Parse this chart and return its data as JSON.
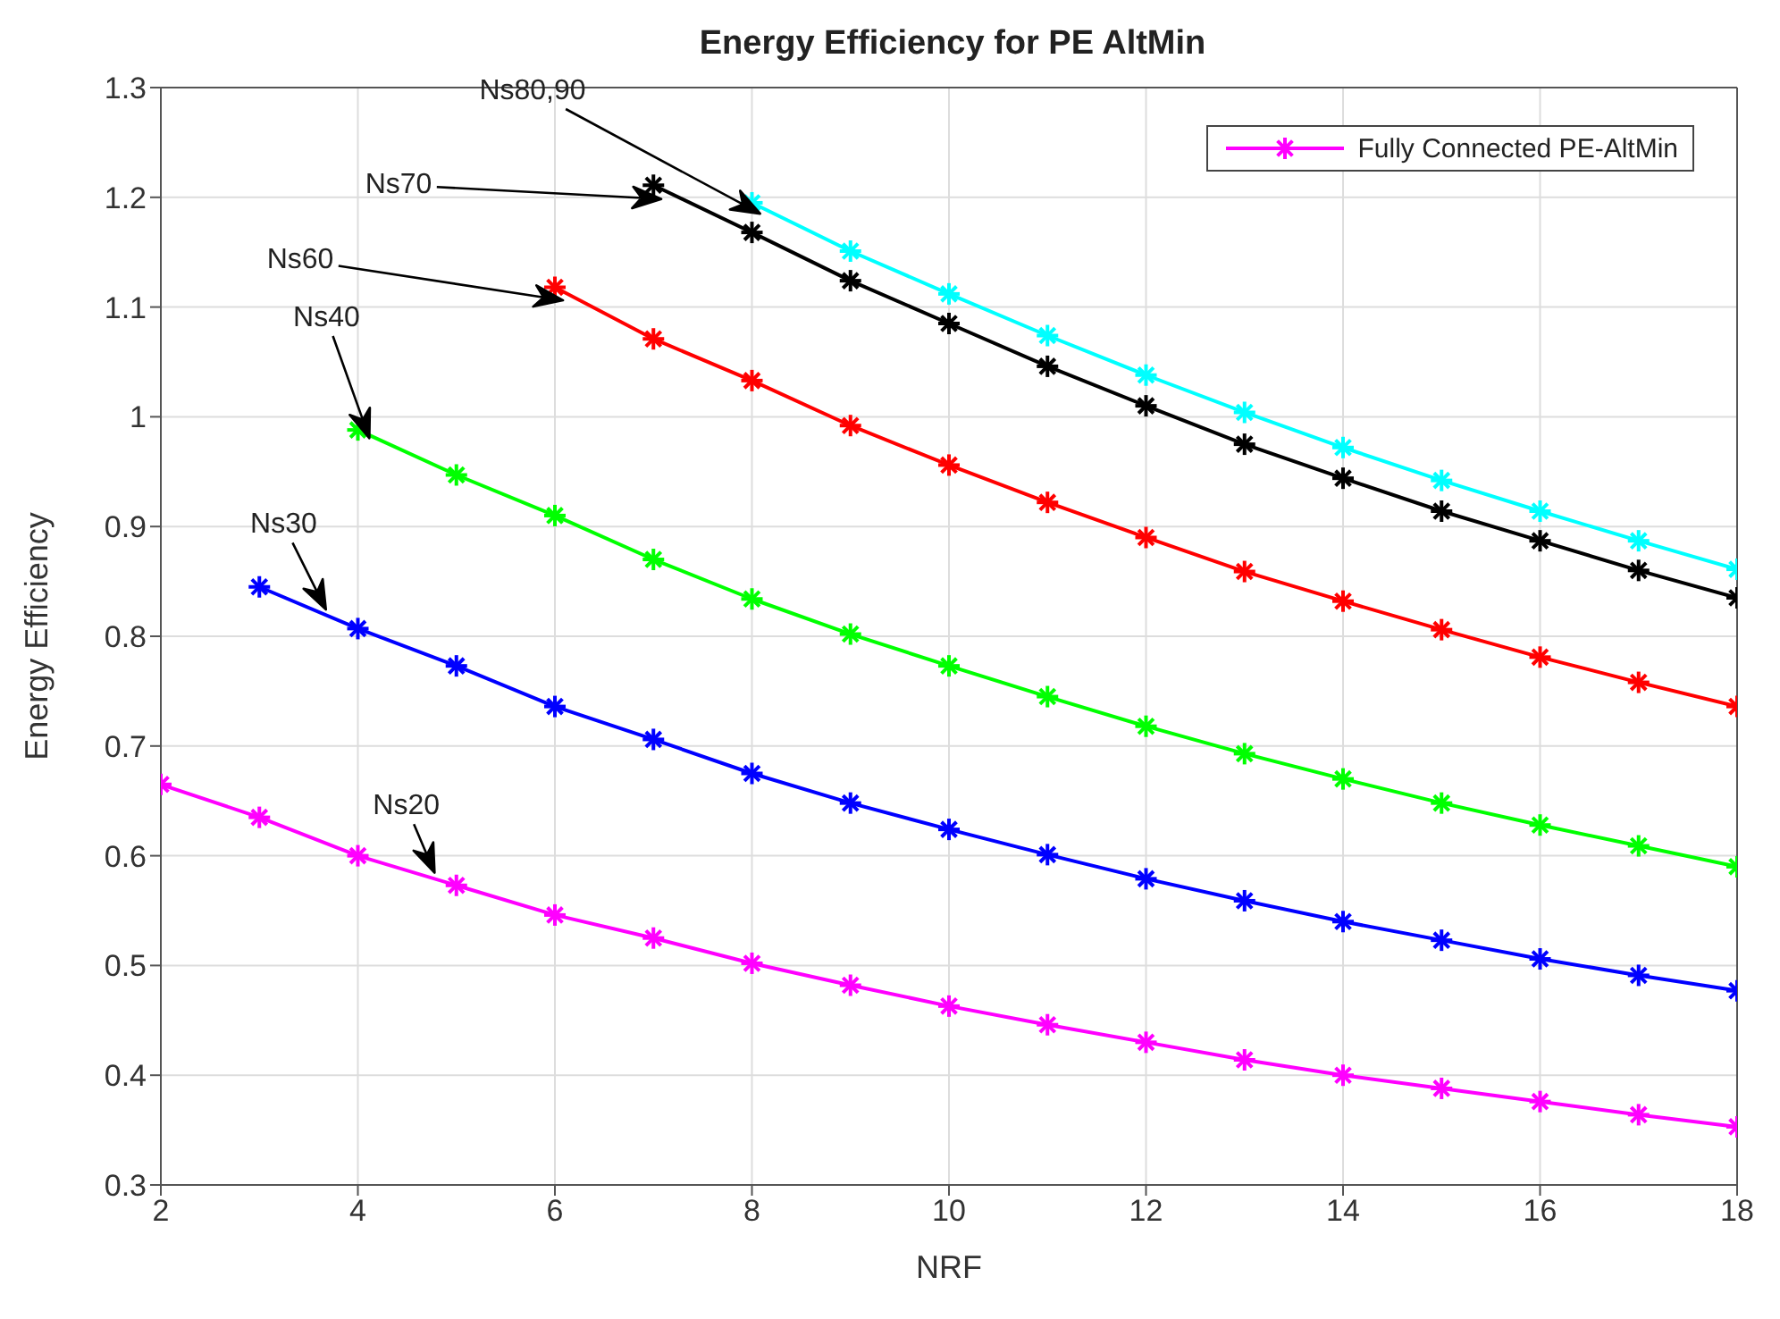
{
  "chart_data": {
    "type": "line",
    "title": "Energy Efficiency for PE AltMin",
    "xlabel": "NRF",
    "ylabel": "Energy Efficiency",
    "xlim": [
      2,
      18
    ],
    "xticks": [
      2,
      4,
      6,
      8,
      10,
      12,
      14,
      16,
      18
    ],
    "ylim": [
      0.3,
      1.3
    ],
    "yticks": [
      0.3,
      0.4,
      0.5,
      0.6,
      0.7,
      0.8,
      0.9,
      1,
      1.1,
      1.2,
      1.3
    ],
    "grid": true,
    "legend": "top right",
    "marker": "cross",
    "line_style": "solid",
    "series": [
      {
        "name": "Fully Connected PE-AltMin",
        "color": "#ff00ff",
        "x": [
          2,
          3,
          4,
          5,
          6,
          7,
          8,
          9,
          10,
          11,
          12,
          13,
          14,
          15,
          16,
          17,
          18
        ],
        "values": [
          0.665,
          0.635,
          0.6,
          0.573,
          0.546,
          0.525,
          0.502,
          0.482,
          0.463,
          0.446,
          0.43,
          0.414,
          0.4,
          0.388,
          0.376,
          0.364,
          0.353
        ]
      },
      {
        "color": "#0000ff",
        "x": [
          3,
          4,
          5,
          6,
          7,
          8,
          9,
          10,
          11,
          12,
          13,
          14,
          15,
          16,
          17,
          18
        ],
        "values": [
          0.845,
          0.807,
          0.773,
          0.736,
          0.706,
          0.675,
          0.648,
          0.624,
          0.601,
          0.579,
          0.559,
          0.54,
          0.523,
          0.506,
          0.491,
          0.477
        ]
      },
      {
        "color": "#00ff00",
        "x": [
          4,
          5,
          6,
          7,
          8,
          9,
          10,
          11,
          12,
          13,
          14,
          15,
          16,
          17,
          18
        ],
        "values": [
          0.988,
          0.947,
          0.91,
          0.87,
          0.834,
          0.802,
          0.773,
          0.745,
          0.718,
          0.693,
          0.67,
          0.648,
          0.628,
          0.609,
          0.59
        ]
      },
      {
        "color": "#ff0000",
        "x": [
          6,
          7,
          8,
          9,
          10,
          11,
          12,
          13,
          14,
          15,
          16,
          17,
          18
        ],
        "values": [
          1.118,
          1.071,
          1.033,
          0.992,
          0.956,
          0.922,
          0.89,
          0.859,
          0.832,
          0.806,
          0.781,
          0.758,
          0.736
        ]
      },
      {
        "color": "#000000",
        "x": [
          7,
          8,
          9,
          10,
          11,
          12,
          13,
          14,
          15,
          16,
          17,
          18
        ],
        "values": [
          1.211,
          1.168,
          1.124,
          1.085,
          1.046,
          1.01,
          0.975,
          0.944,
          0.914,
          0.887,
          0.86,
          0.835
        ]
      },
      {
        "color": "#00ffff",
        "x": [
          8,
          9,
          10,
          11,
          12,
          13,
          14,
          15,
          16,
          17,
          18
        ],
        "values": [
          1.195,
          1.151,
          1.112,
          1.074,
          1.038,
          1.004,
          0.972,
          0.942,
          0.914,
          0.887,
          0.861
        ]
      }
    ],
    "annotations": [
      "Ns80,90",
      "Ns70",
      "Ns60",
      "Ns40",
      {
        "text": "Ns30",
        "x": 3.7,
        "y": 0.82
      },
      {
        "text": "Ns20",
        "x": 4.8,
        "y": 0.58
      }
    ]
  }
}
